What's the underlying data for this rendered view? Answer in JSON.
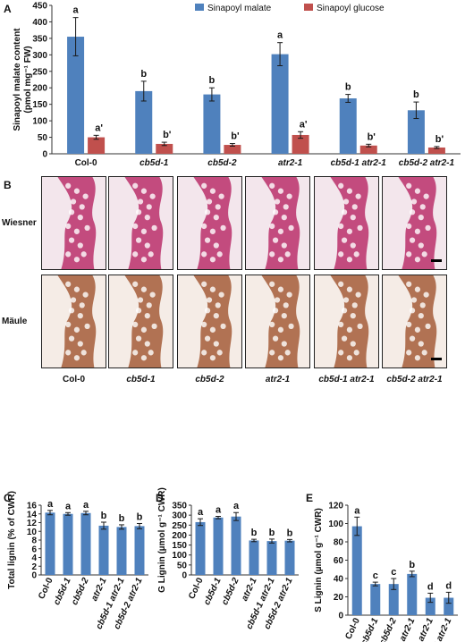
{
  "panels": {
    "A": "A",
    "B": "B",
    "C": "C",
    "D": "D",
    "E": "E"
  },
  "colors": {
    "blue": "#4f81bd",
    "red": "#c0504d",
    "error": "#1a1a1a",
    "wiesner_bg": "#f3e6ec",
    "wiesner_stain": "#b3175a",
    "maule_bg": "#f5ece6",
    "maule_stain": "#9a4a22"
  },
  "panel_b": {
    "row_labels": [
      "Wiesner",
      "Mäule"
    ],
    "col_labels": [
      "Col-0",
      "cb5d-1",
      "cb5d-2",
      "atr2-1",
      "cb5d-1 atr2-1",
      "cb5d-2 atr2-1"
    ]
  },
  "chart_data": [
    {
      "id": "A",
      "type": "bar",
      "ylabel": "Sinapoyl malate content (pmol mg⁻¹ FW)",
      "ylabel_lines": [
        "Sinapoyl malate content",
        "(pmol mg⁻¹ FW)"
      ],
      "ylim": [
        0,
        450
      ],
      "yticks": [
        0,
        50,
        100,
        150,
        200,
        250,
        300,
        350,
        400,
        450
      ],
      "categories": [
        "Col-0",
        "cb5d-1",
        "cb5d-2",
        "atr2-1",
        "cb5d-1 atr2-1",
        "cb5d-2 atr2-1"
      ],
      "legend_position": "top-right",
      "series": [
        {
          "name": "Sinapoyl malate",
          "color": "#4f81bd",
          "values": [
            355,
            190,
            180,
            302,
            168,
            132
          ],
          "errors": [
            58,
            30,
            20,
            35,
            12,
            25
          ],
          "labels": [
            "a",
            "b",
            "b",
            "a",
            "b",
            "b"
          ]
        },
        {
          "name": "Sinapoyl glucose",
          "color": "#c0504d",
          "values": [
            50,
            30,
            27,
            57,
            25,
            19
          ],
          "errors": [
            6,
            5,
            4,
            10,
            4,
            3
          ],
          "labels": [
            "a'",
            "b'",
            "b'",
            "a'",
            "b'",
            "b'"
          ]
        }
      ]
    },
    {
      "id": "C",
      "type": "bar",
      "ylabel": "Total lignin (% of CWR)",
      "ylim": [
        0,
        16
      ],
      "yticks": [
        0,
        2,
        4,
        6,
        8,
        10,
        12,
        14,
        16
      ],
      "categories": [
        "Col-0",
        "cb5d-1",
        "cb5d-2",
        "atr2-1",
        "cb5d-1 atr2-1",
        "cb5d-2 atr2-1"
      ],
      "series": [
        {
          "color": "#4f81bd",
          "values": [
            14.3,
            14.0,
            14.2,
            11.3,
            11.0,
            11.2
          ],
          "errors": [
            0.5,
            0.3,
            0.4,
            0.8,
            0.5,
            0.6
          ],
          "labels": [
            "a",
            "a",
            "a",
            "b",
            "b",
            "b"
          ]
        }
      ]
    },
    {
      "id": "D",
      "type": "bar",
      "ylabel": "G Lignin (µmol g⁻¹ CWR)",
      "ylim": [
        0,
        350
      ],
      "yticks": [
        0,
        50,
        100,
        150,
        200,
        250,
        300,
        350
      ],
      "categories": [
        "Col-0",
        "cb5d-1",
        "cb5d-2",
        "atr2-1",
        "cb5d-1 atr2-1",
        "cb5d-2 atr2-1"
      ],
      "series": [
        {
          "color": "#4f81bd",
          "values": [
            265,
            288,
            293,
            173,
            170,
            172
          ],
          "errors": [
            17,
            6,
            20,
            6,
            10,
            6
          ],
          "labels": [
            "a",
            "a",
            "a",
            "b",
            "b",
            "b"
          ]
        }
      ]
    },
    {
      "id": "E",
      "type": "bar",
      "ylabel": "S Lignin (µmol g⁻¹ CWR)",
      "ylim": [
        0,
        120
      ],
      "yticks": [
        0,
        20,
        40,
        60,
        80,
        100,
        120
      ],
      "categories": [
        "Col-0",
        "cb5d-1",
        "cb5d-2",
        "atr2-1",
        "cb5d-1 atr2-1",
        "cb5d-2 atr2-1"
      ],
      "series": [
        {
          "color": "#4f81bd",
          "values": [
            97,
            34,
            34,
            45,
            19,
            19
          ],
          "errors": [
            10,
            2,
            6,
            3,
            5,
            6
          ],
          "labels": [
            "a",
            "c",
            "c",
            "b",
            "d",
            "d"
          ]
        }
      ]
    }
  ]
}
